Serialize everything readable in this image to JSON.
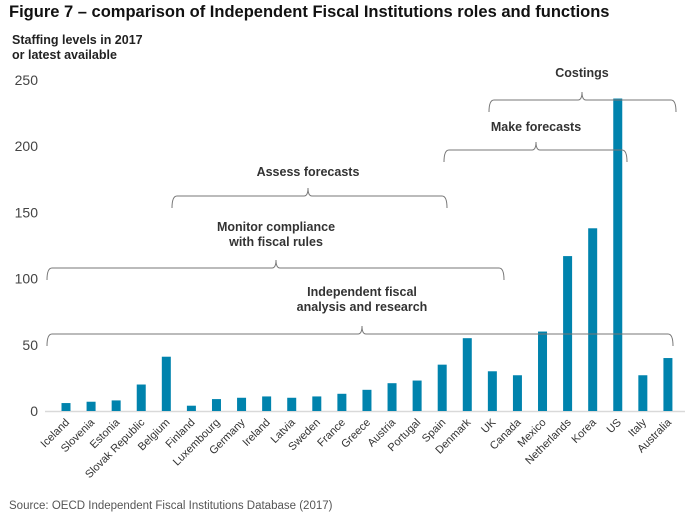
{
  "chart_data": {
    "type": "bar",
    "title": "Figure 7 – comparison of Independent Fiscal Institutions roles and functions",
    "ylabel": "Staffing levels in 2017\nor latest available",
    "xlabel": "",
    "ylim": [
      0,
      250
    ],
    "yticks": [
      0,
      50,
      100,
      150,
      200,
      250
    ],
    "grid": false,
    "bar_color": "#0083ad",
    "categories": [
      "Iceland",
      "Slovenia",
      "Estonia",
      "Slovak Republic",
      "Belgium",
      "Finland",
      "Luxembourg",
      "Germany",
      "Ireland",
      "Latvia",
      "Sweden",
      "France",
      "Greece",
      "Austria",
      "Portugal",
      "Spain",
      "Denmark",
      "UK",
      "Canada",
      "Mexico",
      "Netherlands",
      "Korea",
      "US",
      "Italy",
      "Australia"
    ],
    "values": [
      6,
      7,
      8,
      20,
      41,
      4,
      9,
      10,
      11,
      10,
      11,
      13,
      16,
      21,
      23,
      35,
      55,
      30,
      27,
      60,
      117,
      138,
      236,
      27,
      40
    ],
    "annotations": [
      {
        "label": [
          "Independent fiscal",
          "analysis and research"
        ],
        "from": "Iceland",
        "to": "Australia"
      },
      {
        "label": [
          "Monitor compliance",
          "with fiscal rules"
        ],
        "from": "Iceland",
        "to": "UK"
      },
      {
        "label": [
          "Assess forecasts"
        ],
        "from": "Belgium",
        "to": "Spain"
      },
      {
        "label": [
          "Make forecasts"
        ],
        "from": "Spain",
        "to": "US"
      },
      {
        "label": [
          "Costings"
        ],
        "from": "Canada",
        "to": "Australia"
      }
    ],
    "source": "Source: OECD Independent Fiscal Institutions Database (2017)"
  }
}
